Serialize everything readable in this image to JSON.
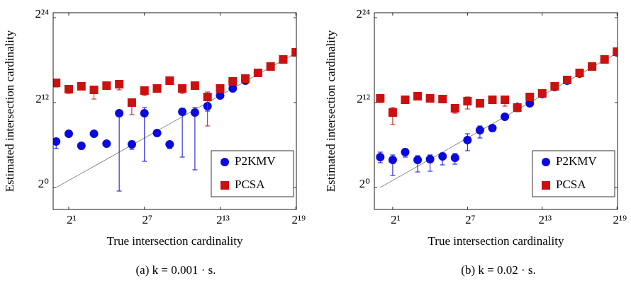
{
  "chart_data": [
    {
      "type": "scatter",
      "caption": "(a) k = 0.001 · s.",
      "xlabel": "True intersection cardinality",
      "ylabel": "Estimated intersection cardinality",
      "xscale": "log",
      "yscale": "log",
      "log_base": 2,
      "reference_line": "identity",
      "legend": "lower right",
      "xlim": [
        0.85,
        540000
      ],
      "ylim": [
        0.1166,
        27254000
      ],
      "xticks": [
        {
          "value": 2,
          "label": "2¹"
        },
        {
          "value": 128,
          "label": "2⁷"
        },
        {
          "value": 8192,
          "label": "2¹³"
        },
        {
          "value": 524288,
          "label": "2¹⁹"
        }
      ],
      "yticks": [
        {
          "value": 1,
          "label": "2⁰"
        },
        {
          "value": 4096,
          "label": "2¹²"
        },
        {
          "value": 16777216,
          "label": "2²⁴"
        }
      ],
      "x": [
        1,
        2,
        4,
        8,
        16,
        32,
        64,
        128,
        256,
        512,
        1024,
        2048,
        4096,
        8192,
        16384,
        32768,
        65536,
        131072,
        262144,
        524288
      ],
      "series": [
        {
          "name": "P2KMV",
          "color": "#0a0adc",
          "marker": "circle",
          "values": [
            90.5,
            194,
            59.7,
            194,
            73.5,
            1448,
            68.6,
            1448,
            208,
            68.6,
            1664,
            1552,
            2896,
            8192,
            16384,
            35127,
            75301,
            140509,
            281018,
            562037
          ],
          "lower": [
            45.3,
            null,
            42.2,
            null,
            null,
            0.707,
            42.2,
            13,
            null,
            45.3,
            19.7,
            5.66,
            1783,
            6208,
            null,
            null,
            null,
            null,
            null,
            null
          ],
          "upper": [
            119.4,
            null,
            73.5,
            null,
            null,
            1552,
            97,
            2521,
            null,
            90.5,
            2353,
            2521,
            3821,
            10084,
            null,
            null,
            null,
            null,
            null,
            null
          ]
        },
        {
          "name": "PCSA",
          "color": "#cc1010",
          "marker": "square",
          "values": [
            28524,
            15286,
            20169,
            14262,
            21627,
            24838,
            4096,
            13312,
            16384,
            35127,
            16384,
            21627,
            7131,
            16384,
            32768,
            43254,
            75301,
            140509,
            281018,
            562037
          ],
          "lower": [
            18820,
            10084,
            null,
            5793,
            null,
            14262,
            1260,
            8192,
            null,
            null,
            10084,
            null,
            416,
            null,
            null,
            null,
            null,
            null,
            null,
            null
          ],
          "upper": [
            37650,
            21627,
            null,
            20169,
            null,
            35127,
            5793,
            17564,
            null,
            null,
            23170,
            null,
            11585,
            null,
            null,
            null,
            null,
            null,
            null,
            null
          ]
        }
      ]
    },
    {
      "type": "scatter",
      "caption": "(b) k = 0.02 · s.",
      "xlabel": "True intersection cardinality",
      "ylabel": "Estimated intersection cardinality",
      "xscale": "log",
      "yscale": "log",
      "log_base": 2,
      "reference_line": "identity",
      "legend": "lower right",
      "xlim": [
        0.72,
        540000
      ],
      "ylim": [
        0.1166,
        27254000
      ],
      "xticks": [
        {
          "value": 2,
          "label": "2¹"
        },
        {
          "value": 128,
          "label": "2⁷"
        },
        {
          "value": 8192,
          "label": "2¹³"
        },
        {
          "value": 524288,
          "label": "2¹⁹"
        }
      ],
      "yticks": [
        {
          "value": 1,
          "label": "2⁰"
        },
        {
          "value": 4096,
          "label": "2¹²"
        },
        {
          "value": 16777216,
          "label": "2²⁴"
        }
      ],
      "x": [
        1,
        2,
        4,
        8,
        16,
        32,
        64,
        128,
        256,
        512,
        1024,
        2048,
        4096,
        8192,
        16384,
        32768,
        65536,
        131072,
        262144,
        524288
      ],
      "series": [
        {
          "name": "P2KMV",
          "color": "#0a0adc",
          "marker": "circle",
          "values": [
            19.7,
            14.9,
            32,
            14.9,
            16,
            21.1,
            18.4,
            104,
            274,
            338,
            1024,
            2703,
            3821,
            9410,
            18820,
            35127,
            70254,
            140509,
            281018,
            562037
          ],
          "lower": [
            11.3,
            3.25,
            19.7,
            4.59,
            4.92,
            9.19,
            9.85,
            36.8,
            128,
            239,
            null,
            null,
            null,
            null,
            null,
            null,
            null,
            null,
            null,
            null
          ],
          "upper": [
            32,
            24.3,
            45.3,
            22.6,
            24.3,
            29.9,
            27.9,
            194,
            416,
            446,
            null,
            null,
            null,
            null,
            null,
            null,
            null,
            null,
            null,
            null
          ]
        },
        {
          "name": "PCSA",
          "color": "#cc1010",
          "marker": "square",
          "values": [
            6208,
            1552,
            5407,
            7643,
            6208,
            5793,
            2353,
            4706,
            3821,
            5407,
            5407,
            2521,
            7131,
            10084,
            20169,
            37650,
            75301,
            140509,
            281018,
            602407
          ],
          "lower": [
            4096,
            478,
            null,
            5793,
            4706,
            4706,
            1448,
            2195,
            2896,
            3821,
            2896,
            1664,
            null,
            null,
            null,
            null,
            null,
            null,
            null,
            null
          ],
          "upper": [
            8192,
            2521,
            null,
            8192,
            7643,
            7131,
            3327,
            7131,
            5042,
            6654,
            6654,
            3327,
            null,
            null,
            null,
            null,
            null,
            null,
            null,
            null
          ]
        }
      ]
    }
  ]
}
